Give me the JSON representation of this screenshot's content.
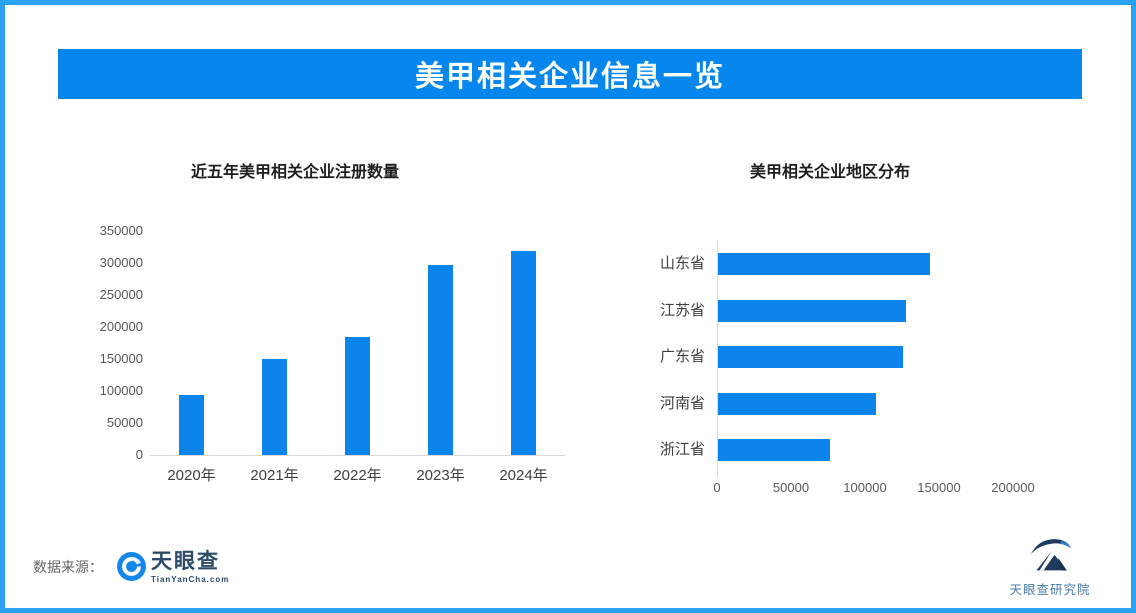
{
  "page": {
    "banner_title": "美甲相关企业信息一览"
  },
  "colors": {
    "banner_blue": "#0787ee",
    "border_blue": "#2ba1f2",
    "bar_blue": "#0c84ec",
    "axis_gray": "#d9d9d9"
  },
  "footer": {
    "source_label": "数据来源：",
    "tianyancha": {
      "brand": "天眼查",
      "domain": "TianYanCha.com"
    },
    "research_institute": "天眼查研究院"
  },
  "chart_data": [
    {
      "type": "bar",
      "orientation": "vertical",
      "title": "近五年美甲相关企业注册数量",
      "categories": [
        "2020年",
        "2021年",
        "2022年",
        "2023年",
        "2024年"
      ],
      "values": [
        93000,
        150000,
        184000,
        297000,
        318000
      ],
      "ylim": [
        0,
        350000
      ],
      "yticks": [
        0,
        50000,
        100000,
        150000,
        200000,
        250000,
        300000,
        350000
      ],
      "grid": false,
      "legend": "none",
      "bar_color": "#0c84ec"
    },
    {
      "type": "bar",
      "orientation": "horizontal",
      "title": "美甲相关企业地区分布",
      "categories": [
        "山东省",
        "江苏省",
        "广东省",
        "河南省",
        "浙江省"
      ],
      "values": [
        143000,
        127000,
        125000,
        107000,
        76000
      ],
      "xlim": [
        0,
        230000
      ],
      "xticks": [
        0,
        50000,
        100000,
        150000,
        200000
      ],
      "grid": false,
      "legend": "none",
      "bar_color": "#0c84ec"
    }
  ]
}
